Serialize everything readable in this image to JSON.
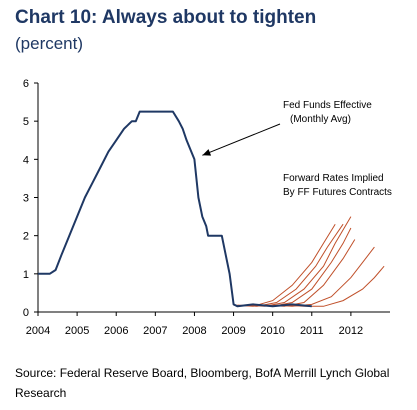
{
  "header": {
    "title": "Chart 10: Always about to tighten",
    "subtitle": "(percent)"
  },
  "source": "Source: Federal Reserve Board, Bloomberg, BofA Merrill Lynch Global Research",
  "chart_data": {
    "type": "line",
    "title": "Chart 10: Always about to tighten",
    "subtitle": "(percent)",
    "xlabel": "",
    "ylabel": "",
    "xlim": [
      2004,
      2013
    ],
    "ylim": [
      0,
      6
    ],
    "x_ticks": [
      "2004",
      "2005",
      "2006",
      "2007",
      "2008",
      "2009",
      "2010",
      "2011",
      "2012"
    ],
    "y_ticks": [
      "0",
      "1",
      "2",
      "3",
      "4",
      "5",
      "6"
    ],
    "grid": false,
    "colors": {
      "fed_funds": "#1f3864",
      "forwards": "#c0502a",
      "axis": "#000000",
      "title": "#1f3864"
    },
    "annotations": [
      {
        "lines": [
          "Fed Funds Effective",
          "(Monthly Avg)"
        ],
        "arrow_to": [
          2008.1,
          4.0
        ]
      },
      {
        "lines": [
          "Forward Rates Implied",
          "By FF Futures Contracts"
        ]
      }
    ],
    "series": [
      {
        "role": "fed_funds",
        "x": [
          2004.0,
          2004.3,
          2004.45,
          2004.6,
          2004.8,
          2005.0,
          2005.2,
          2005.4,
          2005.6,
          2005.8,
          2006.0,
          2006.2,
          2006.4,
          2006.5,
          2006.6,
          2006.75,
          2007.0,
          2007.3,
          2007.45,
          2007.6,
          2007.7,
          2007.8,
          2007.9,
          2008.0,
          2008.1,
          2008.2,
          2008.3,
          2008.35,
          2008.5,
          2008.7,
          2008.8,
          2008.9,
          2009.0,
          2009.1,
          2009.5,
          2010.0,
          2010.5,
          2011.0
        ],
        "y": [
          1.0,
          1.0,
          1.1,
          1.5,
          2.0,
          2.5,
          3.0,
          3.4,
          3.8,
          4.2,
          4.5,
          4.8,
          5.0,
          5.0,
          5.25,
          5.25,
          5.25,
          5.25,
          5.25,
          5.0,
          4.8,
          4.5,
          4.25,
          4.0,
          3.0,
          2.5,
          2.25,
          2.0,
          2.0,
          2.0,
          1.5,
          1.0,
          0.2,
          0.15,
          0.2,
          0.15,
          0.2,
          0.15
        ]
      },
      {
        "role": "forward",
        "x": [
          2009.0,
          2009.5,
          2010.0,
          2010.5,
          2011.0,
          2011.3,
          2011.6
        ],
        "y": [
          0.18,
          0.15,
          0.3,
          0.7,
          1.3,
          1.8,
          2.3
        ]
      },
      {
        "role": "forward",
        "x": [
          2009.1,
          2009.6,
          2010.1,
          2010.6,
          2011.1,
          2011.4,
          2011.8
        ],
        "y": [
          0.18,
          0.15,
          0.25,
          0.6,
          1.2,
          1.7,
          2.3
        ]
      },
      {
        "role": "forward",
        "x": [
          2009.3,
          2009.8,
          2010.3,
          2010.8,
          2011.3,
          2011.6,
          2012.0
        ],
        "y": [
          0.18,
          0.15,
          0.25,
          0.6,
          1.2,
          1.8,
          2.5
        ]
      },
      {
        "role": "forward",
        "x": [
          2009.5,
          2010.0,
          2010.5,
          2011.0,
          2011.5,
          2011.8,
          2012.0
        ],
        "y": [
          0.18,
          0.15,
          0.25,
          0.6,
          1.3,
          1.8,
          2.2
        ]
      },
      {
        "role": "forward",
        "x": [
          2009.8,
          2010.3,
          2010.8,
          2011.3,
          2011.8,
          2012.1
        ],
        "y": [
          0.18,
          0.15,
          0.25,
          0.7,
          1.4,
          1.9
        ]
      },
      {
        "role": "forward",
        "x": [
          2010.0,
          2010.5,
          2011.0,
          2011.5,
          2012.0,
          2012.3,
          2012.6
        ],
        "y": [
          0.18,
          0.15,
          0.2,
          0.4,
          0.9,
          1.3,
          1.7
        ]
      },
      {
        "role": "forward",
        "x": [
          2010.3,
          2010.8,
          2011.3,
          2011.8,
          2012.3,
          2012.6,
          2012.85
        ],
        "y": [
          0.18,
          0.15,
          0.15,
          0.3,
          0.6,
          0.9,
          1.2
        ]
      }
    ]
  }
}
